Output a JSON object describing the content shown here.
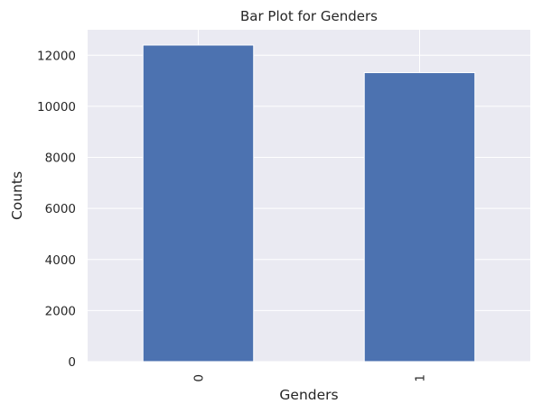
{
  "chart_data": {
    "type": "bar",
    "title": "Bar Plot for Genders",
    "xlabel": "Genders",
    "ylabel": "Counts",
    "categories": [
      "0",
      "1"
    ],
    "values": [
      12400,
      11320
    ],
    "ylim": [
      0,
      13000
    ],
    "yticks": [
      0,
      2000,
      4000,
      6000,
      8000,
      10000,
      12000
    ],
    "ytick_labels": [
      "0",
      "2000",
      "4000",
      "6000",
      "8000",
      "10000",
      "12000"
    ],
    "grid": true,
    "bar_color": "#4c72b0",
    "background_color": "#eaeaf2"
  }
}
